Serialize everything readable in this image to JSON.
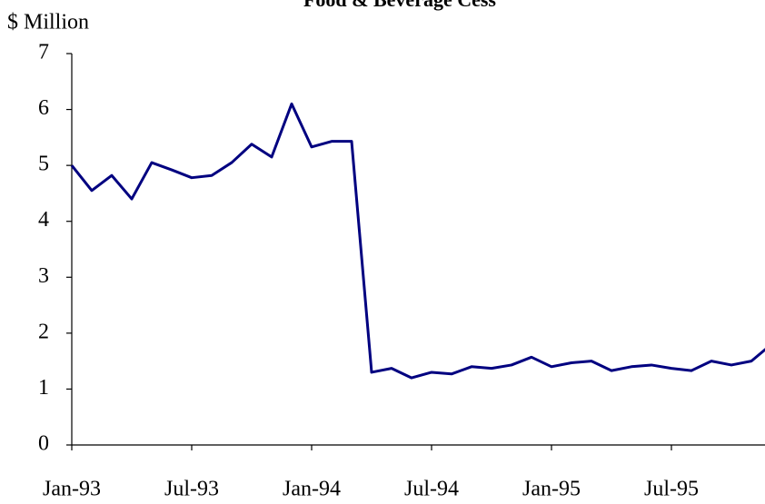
{
  "chart_data": {
    "type": "line",
    "title": "Food & Beverage Cess",
    "y_label": "$ Million",
    "categories": [
      "Jan-93",
      null,
      null,
      null,
      null,
      null,
      "Jul-93",
      null,
      null,
      null,
      null,
      null,
      "Jan-94",
      null,
      null,
      null,
      null,
      null,
      "Jul-94",
      null,
      null,
      null,
      null,
      null,
      "Jan-95",
      null,
      null,
      null,
      null,
      null,
      "Jul-95",
      null,
      null,
      null,
      null,
      null
    ],
    "series": [
      {
        "color": "#000080",
        "values": [
          5.0,
          4.55,
          4.82,
          4.4,
          5.05,
          4.92,
          4.78,
          4.82,
          5.05,
          5.38,
          5.15,
          6.1,
          5.33,
          5.43,
          5.43,
          1.3,
          1.37,
          1.2,
          1.3,
          1.27,
          1.4,
          1.37,
          1.43,
          1.57,
          1.4,
          1.47,
          1.5,
          1.33,
          1.4,
          1.43,
          1.37,
          1.33,
          1.5,
          1.43,
          1.5,
          1.8
        ]
      }
    ],
    "ylim": [
      0,
      7
    ],
    "yticks": [
      0,
      1,
      2,
      3,
      4,
      5,
      6,
      7
    ]
  }
}
